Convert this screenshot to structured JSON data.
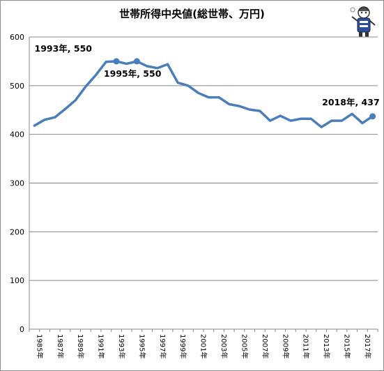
{
  "chart_data": {
    "type": "line",
    "title": "世帯所得中央値(総世帯、万円)",
    "x": [
      1985,
      1986,
      1987,
      1988,
      1989,
      1990,
      1991,
      1992,
      1993,
      1994,
      1995,
      1996,
      1997,
      1998,
      1999,
      2000,
      2001,
      2002,
      2003,
      2004,
      2005,
      2006,
      2007,
      2008,
      2009,
      2010,
      2011,
      2012,
      2013,
      2014,
      2015,
      2016,
      2017,
      2018
    ],
    "series": [
      {
        "name": "",
        "values": [
          418,
          430,
          435,
          452,
          470,
          498,
          522,
          549,
          550,
          545,
          550,
          540,
          536,
          544,
          506,
          500,
          485,
          476,
          476,
          462,
          458,
          451,
          448,
          428,
          438,
          428,
          432,
          432,
          415,
          428,
          428,
          442,
          423,
          437
        ]
      }
    ],
    "ylim": [
      0,
      600
    ],
    "yticks": [
      0,
      100,
      200,
      300,
      400,
      500,
      600
    ],
    "xtick_labels": [
      "1985年",
      "1987年",
      "1989年",
      "1991年",
      "1993年",
      "1995年",
      "1997年",
      "1999年",
      "2001年",
      "2003年",
      "2005年",
      "2007年",
      "2009年",
      "2011年",
      "2013年",
      "2015年",
      "2017年"
    ],
    "grid": true,
    "annotations": [
      {
        "x": 1993,
        "y": 550,
        "label": "1993年, 550"
      },
      {
        "x": 1995,
        "y": 550,
        "label": "1995年, 550"
      },
      {
        "x": 2018,
        "y": 437,
        "label": "2018年, 437"
      }
    ],
    "line_color": "#4a7ebb"
  }
}
